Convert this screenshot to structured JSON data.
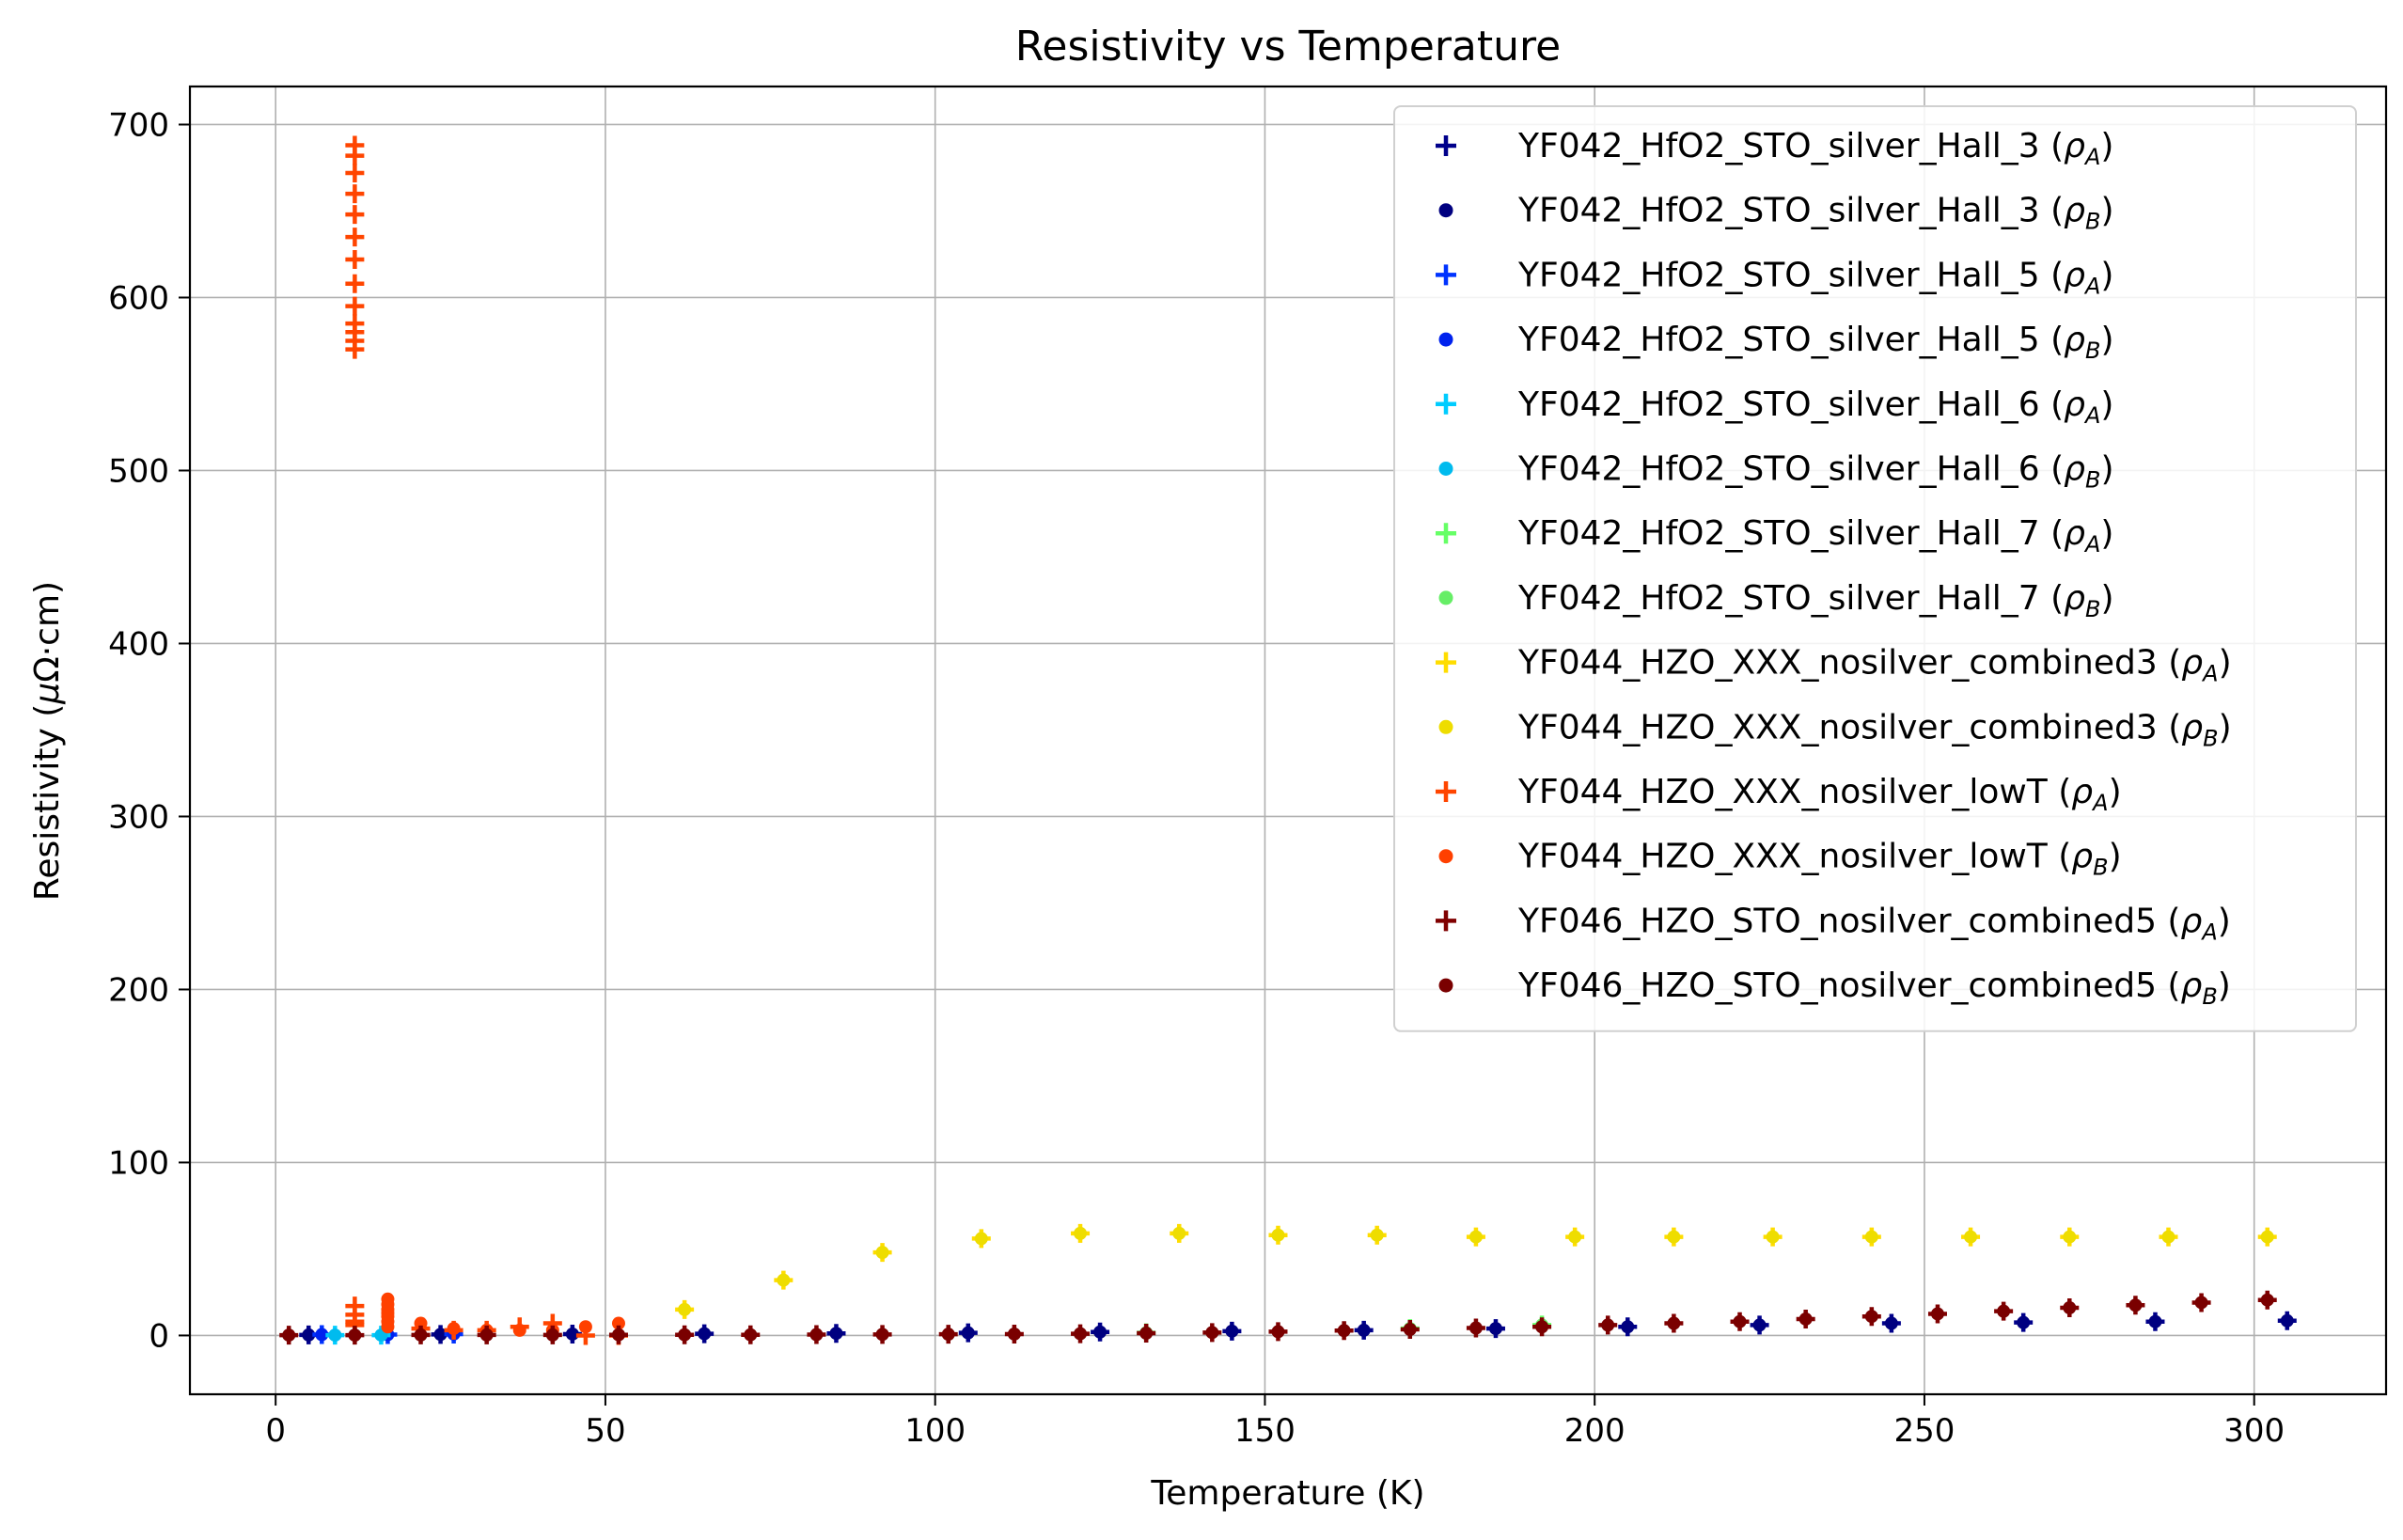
{
  "chart_data": {
    "type": "scatter",
    "title": "Resistivity vs Temperature",
    "xlabel": "Temperature (K)",
    "ylabel": "Resistivity (μΩ·cm)",
    "ylabel_prefix": "Resistivity (",
    "ylabel_mu": "μ",
    "ylabel_suffix": "Ω·cm)",
    "xlim": [
      -13,
      320
    ],
    "ylim": [
      -34,
      722
    ],
    "xticks": [
      0,
      50,
      100,
      150,
      200,
      250,
      300
    ],
    "yticks": [
      0,
      100,
      200,
      300,
      400,
      500,
      600,
      700
    ],
    "grid": true,
    "legend_position": "top-right",
    "series": [
      {
        "name": "YF042_HfO2_STO_silver_Hall_3",
        "sub": "A",
        "marker": "plus",
        "color": "#00008b",
        "x": [
          5,
          25,
          45,
          65,
          85,
          105,
          125,
          145,
          165,
          185,
          205,
          225,
          245,
          265,
          285,
          305
        ],
        "y": [
          0.3,
          0.6,
          0.8,
          1.0,
          1.2,
          1.5,
          2,
          2.5,
          3,
          4,
          5,
          6,
          7,
          7.5,
          8,
          8.5
        ]
      },
      {
        "name": "YF042_HfO2_STO_silver_Hall_3",
        "sub": "B",
        "marker": "dot",
        "color": "#000080",
        "x": [
          5,
          25,
          45,
          65,
          85,
          105,
          125,
          145,
          165,
          185,
          205,
          225,
          245,
          265,
          285,
          305
        ],
        "y": [
          0.3,
          0.6,
          0.8,
          1.0,
          1.2,
          1.5,
          2,
          2.5,
          3,
          4,
          5,
          6,
          7,
          7.5,
          8,
          8.5
        ]
      },
      {
        "name": "YF042_HfO2_STO_silver_Hall_5",
        "sub": "A",
        "marker": "plus",
        "color": "#0033ff",
        "x": [
          7,
          17,
          27
        ],
        "y": [
          0.5,
          0.5,
          0.8
        ]
      },
      {
        "name": "YF042_HfO2_STO_silver_Hall_5",
        "sub": "B",
        "marker": "dot",
        "color": "#0022ee",
        "x": [
          7,
          17,
          27
        ],
        "y": [
          0.5,
          0.5,
          0.8
        ]
      },
      {
        "name": "YF042_HfO2_STO_silver_Hall_6",
        "sub": "A",
        "marker": "plus",
        "color": "#00ccff",
        "x": [
          9,
          16
        ],
        "y": [
          0.2,
          0.2
        ]
      },
      {
        "name": "YF042_HfO2_STO_silver_Hall_6",
        "sub": "B",
        "marker": "dot",
        "color": "#00bbee",
        "x": [
          9,
          16
        ],
        "y": [
          0.2,
          0.2
        ]
      },
      {
        "name": "YF042_HfO2_STO_silver_Hall_7",
        "sub": "A",
        "marker": "plus",
        "color": "#66ff66",
        "x": [
          132,
          172,
          192
        ],
        "y": [
          1.5,
          4,
          6
        ]
      },
      {
        "name": "YF042_HfO2_STO_silver_Hall_7",
        "sub": "B",
        "marker": "dot",
        "color": "#66ee66",
        "x": [
          132,
          172,
          192
        ],
        "y": [
          1.5,
          4,
          6
        ]
      },
      {
        "name": "YF044_HZO_XXX_nosilver_combined3",
        "sub": "A",
        "marker": "plus",
        "color": "#ffdd00",
        "x": [
          62,
          77,
          92,
          107,
          122,
          137,
          152,
          167,
          182,
          197,
          212,
          227,
          242,
          257,
          272,
          287,
          302
        ],
        "y": [
          15,
          32,
          48,
          56,
          59,
          59,
          58,
          58,
          57,
          57,
          57,
          57,
          57,
          57,
          57,
          57,
          57
        ]
      },
      {
        "name": "YF044_HZO_XXX_nosilver_combined3",
        "sub": "B",
        "marker": "dot",
        "color": "#eedd00",
        "x": [
          62,
          77,
          92,
          107,
          122,
          137,
          152,
          167,
          182,
          197,
          212,
          227,
          242,
          257,
          272,
          287,
          302
        ],
        "y": [
          15,
          32,
          48,
          56,
          59,
          59,
          58,
          58,
          57,
          57,
          57,
          57,
          57,
          57,
          57,
          57,
          57
        ]
      },
      {
        "name": "YF044_HZO_XXX_nosilver_lowT",
        "sub": "A",
        "marker": "plus",
        "color": "#ff4500",
        "x": [
          12,
          12,
          12,
          12,
          12,
          12,
          12,
          12,
          12,
          12,
          12,
          12,
          12,
          12,
          12,
          12,
          12,
          22,
          27,
          32,
          37,
          42,
          47,
          52
        ],
        "y": [
          570,
          575,
          580,
          585,
          595,
          608,
          622,
          635,
          648,
          660,
          672,
          682,
          688,
          17,
          12,
          8,
          6,
          4,
          3,
          3,
          5,
          7,
          0,
          0
        ]
      },
      {
        "name": "YF044_HZO_XXX_nosilver_lowT",
        "sub": "B",
        "marker": "dot",
        "color": "#ff4000",
        "x": [
          17,
          17,
          17,
          17,
          17,
          17,
          17,
          22,
          27,
          32,
          37,
          42,
          47,
          52
        ],
        "y": [
          5,
          8,
          11,
          13,
          15,
          18,
          21,
          7,
          4,
          3,
          3,
          3,
          5,
          7
        ]
      },
      {
        "name": "YF046_HZO_STO_nosilver_combined5",
        "sub": "A",
        "marker": "plus",
        "color": "#800000",
        "x": [
          2,
          12,
          22,
          32,
          42,
          52,
          62,
          72,
          82,
          92,
          102,
          112,
          122,
          132,
          142,
          152,
          162,
          172,
          182,
          192,
          202,
          212,
          222,
          232,
          242,
          252,
          262,
          272,
          282,
          292,
          302
        ],
        "y": [
          0.2,
          0.2,
          0.3,
          0.3,
          0.3,
          0.4,
          0.4,
          0.4,
          0.5,
          0.6,
          0.7,
          0.8,
          1,
          1.3,
          1.7,
          2.2,
          2.8,
          3.5,
          4.3,
          5,
          6,
          7,
          8,
          9.5,
          11,
          12.5,
          14,
          16,
          17.5,
          19,
          20.5
        ]
      },
      {
        "name": "YF046_HZO_STO_nosilver_combined5",
        "sub": "B",
        "marker": "dot",
        "color": "#7a0000",
        "x": [
          2,
          12,
          22,
          32,
          42,
          52,
          62,
          72,
          82,
          92,
          102,
          112,
          122,
          132,
          142,
          152,
          162,
          172,
          182,
          192,
          202,
          212,
          222,
          232,
          242,
          252,
          262,
          272,
          282,
          292,
          302
        ],
        "y": [
          0.2,
          0.2,
          0.3,
          0.3,
          0.3,
          0.4,
          0.4,
          0.4,
          0.5,
          0.6,
          0.7,
          0.8,
          1,
          1.3,
          1.7,
          2.2,
          2.8,
          3.5,
          4.3,
          5,
          6,
          7,
          8,
          9.5,
          11,
          12.5,
          14,
          16,
          17.5,
          19,
          20.5
        ]
      }
    ]
  }
}
